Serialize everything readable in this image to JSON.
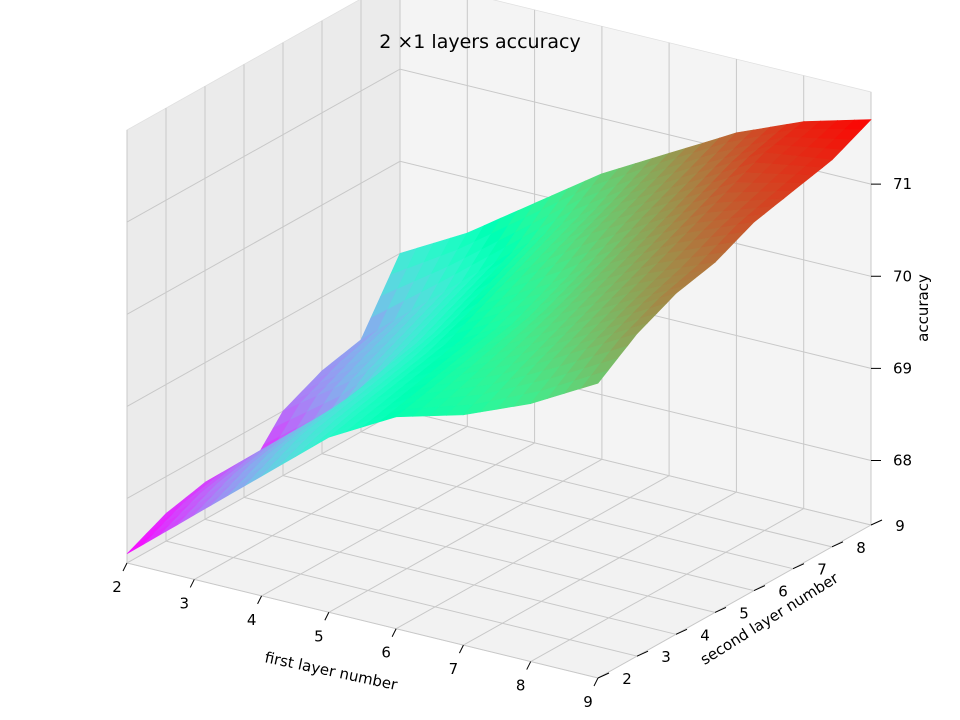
{
  "chart_data": {
    "type": "surface",
    "title": "2 ×1 layers accuracy",
    "xlabel": "first layer number",
    "ylabel": "second layer number",
    "zlabel": "accuracy",
    "x_ticks": [
      "2",
      "3",
      "4",
      "5",
      "6",
      "7",
      "8",
      "9"
    ],
    "y_ticks": [
      "2",
      "3",
      "4",
      "5",
      "6",
      "7",
      "8",
      "9"
    ],
    "z_ticks": [
      "68",
      "69",
      "70",
      "71"
    ],
    "xlim": [
      2,
      9
    ],
    "ylim": [
      2,
      9
    ],
    "zlim": [
      67.3,
      72.0
    ],
    "colormap": "rainbow",
    "grid": true,
    "x": [
      2,
      3,
      4,
      5,
      6,
      7,
      8,
      9
    ],
    "y": [
      2,
      3,
      4,
      5,
      6,
      7,
      8,
      9
    ],
    "z": [
      [
        67.4,
        68.0,
        68.6,
        69.2,
        69.6,
        69.8,
        70.1,
        70.5
      ],
      [
        67.6,
        68.2,
        68.8,
        69.3,
        69.7,
        70.0,
        70.4,
        70.8
      ],
      [
        67.7,
        68.3,
        68.9,
        69.4,
        69.8,
        70.2,
        70.6,
        71.0
      ],
      [
        67.5,
        68.1,
        69.0,
        69.5,
        69.9,
        70.4,
        70.8,
        71.1
      ],
      [
        68.0,
        68.5,
        69.1,
        69.7,
        70.1,
        70.6,
        71.0,
        71.3
      ],
      [
        68.2,
        68.7,
        69.3,
        69.9,
        70.4,
        70.8,
        71.2,
        71.4
      ],
      [
        68.3,
        68.9,
        69.5,
        70.1,
        70.6,
        71.0,
        71.4,
        71.5
      ],
      [
        69.0,
        69.4,
        69.9,
        70.4,
        70.8,
        71.2,
        71.5,
        71.7
      ]
    ]
  }
}
